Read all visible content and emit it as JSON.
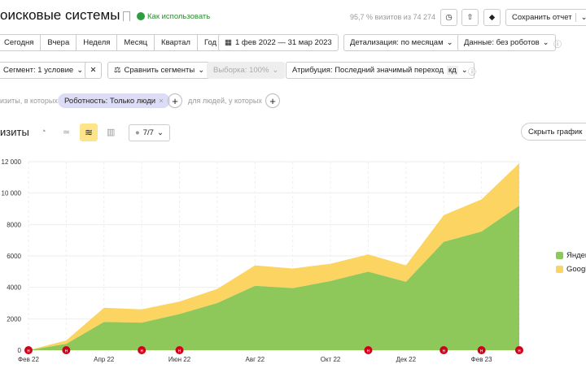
{
  "header": {
    "title": "оисковые системы",
    "how_to": "Как использовать",
    "sample_info": "95,7 % визитов из 74 274",
    "save_label": "Сохранить отчет"
  },
  "periods": [
    "Сегодня",
    "Вчера",
    "Неделя",
    "Месяц",
    "Квартал",
    "Год"
  ],
  "date_range": "1 фев 2022 — 31 мар 2023",
  "detail": "Детализация: по месяцам",
  "data_filter": "Данные: без роботов",
  "segment": "Сегмент: 1 условие",
  "compare": "Сравнить сегменты",
  "sample": "Выборка: 100%",
  "attribution": "Атрибуция: Последний значимый переход",
  "attribution_badge": "кд",
  "filter": {
    "prefix": "изиты, в которых",
    "chip": "Роботность: Только люди",
    "people": "для людей, у которых"
  },
  "chart_header": {
    "metric": "изиты",
    "series_count": "7/7",
    "hide": "Скрыть график"
  },
  "colors": {
    "yandex": "#8fc85a",
    "google": "#fcd462",
    "marker": "#d0021b",
    "accent": "#fde48a"
  },
  "chart_data": {
    "type": "area",
    "stacked": true,
    "x": [
      "Фев 22",
      "Мар 22",
      "Апр 22",
      "Май 22",
      "Июн 22",
      "Июл 22",
      "Авг 22",
      "Сен 22",
      "Окт 22",
      "Ноя 22",
      "Дек 22",
      "Янв 23",
      "Фев 23",
      "Мар 23"
    ],
    "xtick_labels": [
      "Фев 22",
      "Апр 22",
      "Июн 22",
      "Авг 22",
      "Окт 22",
      "Дек 22",
      "Фев 23"
    ],
    "ytick_labels": [
      "0",
      "2000",
      "4000",
      "6000",
      "8000",
      "10 000",
      "12 000"
    ],
    "ylim": [
      0,
      12000
    ],
    "grid": true,
    "legend": "right",
    "series": [
      {
        "name": "Яндекс",
        "values": [
          0,
          400,
          1800,
          1750,
          2300,
          3000,
          4100,
          3950,
          4400,
          5000,
          4350,
          6900,
          7550,
          9200
        ]
      },
      {
        "name": "Google",
        "values": [
          0,
          220,
          900,
          850,
          800,
          900,
          1300,
          1250,
          1100,
          1100,
          1050,
          1700,
          2050,
          2700
        ]
      }
    ],
    "annotation_months": [
      "Фев 22",
      "Мар 22",
      "Май 22",
      "Июн 22",
      "Ноя 22",
      "Янв 23",
      "Фев 23",
      "Мар 23"
    ],
    "annotation_label": "н"
  }
}
